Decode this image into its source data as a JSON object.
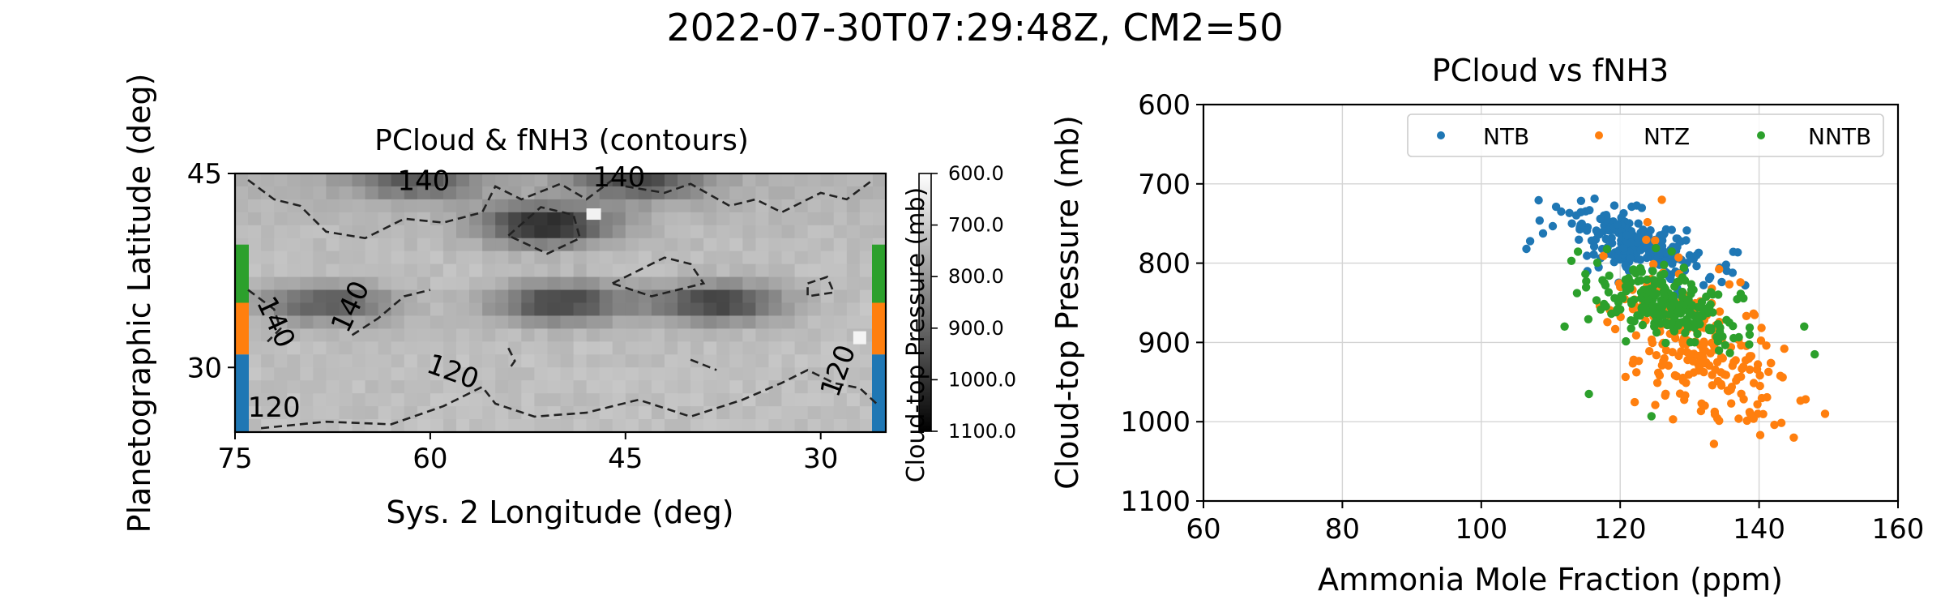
{
  "figure": {
    "title": "2022-07-30T07:29:48Z, CM2=50"
  },
  "chart_data": [
    {
      "type": "heatmap",
      "title": "PCloud & fNH3 (contours)",
      "xlabel": "Sys. 2 Longitude (deg)",
      "ylabel": "Planetographic Latitude (deg)",
      "xlim": [
        75,
        25
      ],
      "ylim": [
        25,
        45
      ],
      "xticks": [
        "75",
        "60",
        "45",
        "30"
      ],
      "yticks": [
        "45",
        "30"
      ],
      "colorbar": {
        "label": "Cloud-top Pressure (mb)",
        "range": [
          600,
          1100
        ],
        "ticks": [
          "600.0",
          "700.0",
          "800.0",
          "900.0",
          "1000.0",
          "1100.0"
        ],
        "colormap": "gray_r"
      },
      "contours": {
        "style": "dashed",
        "labels": [
          {
            "text": "140",
            "lon": 60.5,
            "lat": 43.7
          },
          {
            "text": "140",
            "lon": 45.5,
            "lat": 44.0
          },
          {
            "text": "140",
            "lon": 72.5,
            "lat": 33.2
          },
          {
            "text": "140",
            "lon": 65.5,
            "lat": 34.4
          },
          {
            "text": "120",
            "lon": 58.5,
            "lat": 29.0
          },
          {
            "text": "120",
            "lon": 28.0,
            "lat": 29.5
          },
          {
            "text": "120",
            "lon": 72.0,
            "lat": 26.2
          }
        ]
      },
      "band_markers": [
        {
          "name": "NNTB",
          "lat_range": [
            35.0,
            39.5
          ],
          "color": "#2ca02c"
        },
        {
          "name": "NTZ",
          "lat_range": [
            31.0,
            35.0
          ],
          "color": "#ff7f0e"
        },
        {
          "name": "NTB",
          "lat_range": [
            25.0,
            31.0
          ],
          "color": "#1f77b4"
        }
      ],
      "dark_features": [
        {
          "lon": 68.0,
          "lat": 35.0,
          "strength": 0.45
        },
        {
          "lon": 50.0,
          "lat": 35.0,
          "strength": 0.55
        },
        {
          "lon": 38.0,
          "lat": 35.0,
          "strength": 0.55
        },
        {
          "lon": 51.0,
          "lat": 41.0,
          "strength": 0.65
        },
        {
          "lon": 61.0,
          "lat": 44.5,
          "strength": 0.4
        },
        {
          "lon": 44.0,
          "lat": 44.5,
          "strength": 0.45
        }
      ]
    },
    {
      "type": "scatter",
      "title": "PCloud vs fNH3",
      "xlabel": "Ammonia Mole Fraction (ppm)",
      "ylabel": "Cloud-top Pressure (mb)",
      "xlim": [
        60,
        160
      ],
      "ylim": [
        1100,
        600
      ],
      "xticks": [
        "60",
        "80",
        "100",
        "120",
        "140",
        "160"
      ],
      "yticks": [
        "600",
        "700",
        "800",
        "900",
        "1000",
        "1100"
      ],
      "grid": true,
      "legend": "top-right",
      "series": [
        {
          "name": "NTB",
          "color": "#1f77b4",
          "center": [
            122,
            775
          ],
          "spread": [
            5.5,
            22
          ],
          "count": 230,
          "extremes": [
            [
              106.5,
              782
            ],
            [
              111.5,
              735
            ],
            [
              128,
              840
            ],
            [
              131,
              790
            ]
          ]
        },
        {
          "name": "NTZ",
          "color": "#ff7f0e",
          "center": [
            131,
            900
          ],
          "spread": [
            6.0,
            48
          ],
          "count": 230,
          "extremes": [
            [
              126.0,
              720
            ],
            [
              133.5,
              1028
            ],
            [
              149.5,
              990
            ],
            [
              145,
              1020
            ],
            [
              120,
              830
            ]
          ]
        },
        {
          "name": "NNTB",
          "color": "#2ca02c",
          "center": [
            127,
            855
          ],
          "spread": [
            5.5,
            25
          ],
          "count": 230,
          "extremes": [
            [
              115.5,
              965
            ],
            [
              112,
              880
            ],
            [
              148,
              915
            ],
            [
              146.5,
              880
            ],
            [
              124.5,
              993
            ]
          ]
        }
      ]
    }
  ]
}
